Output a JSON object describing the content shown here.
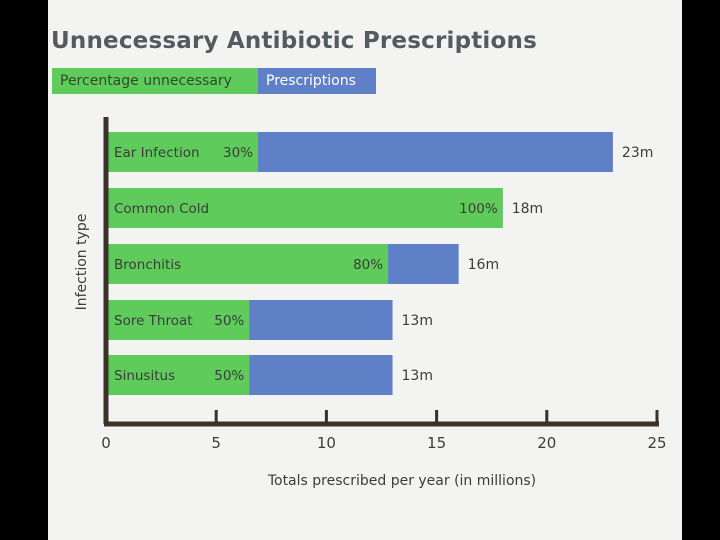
{
  "chart_data": {
    "type": "bar",
    "title": "Unnecessary Antibiotic Prescriptions",
    "legend": [
      {
        "name": "Percentage unnecessary",
        "color": "#5ecb5a"
      },
      {
        "name": "Prescriptions",
        "color": "#5f80c6"
      }
    ],
    "xlabel": "Totals prescribed per year (in millions)",
    "ylabel": "Infection type",
    "xlim": [
      0,
      25
    ],
    "xticks": [
      "0",
      "5",
      "10",
      "15",
      "20",
      "25"
    ],
    "categories": [
      "Ear Infection",
      "Common Cold",
      "Bronchitis",
      "Sore Throat",
      "Sinusitus"
    ],
    "series": [
      {
        "name": "Prescriptions",
        "values": [
          23,
          18,
          16,
          13,
          13
        ],
        "labels": [
          "23m",
          "18m",
          "16m",
          "13m",
          "13m"
        ]
      },
      {
        "name": "Percentage unnecessary",
        "values": [
          30,
          100,
          80,
          50,
          50
        ],
        "labels": [
          "30%",
          "100%",
          "80%",
          "50%",
          "50%"
        ]
      }
    ]
  }
}
